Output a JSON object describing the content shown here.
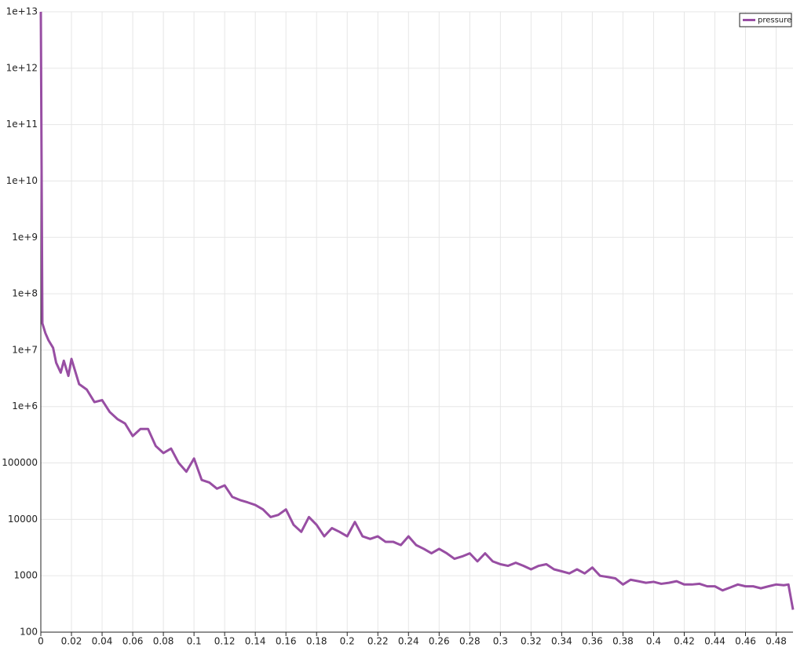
{
  "chart_data": {
    "type": "line",
    "log_y": true,
    "grid": true,
    "legend": "top-right",
    "xlim": [
      0,
      0.491
    ],
    "ylim": [
      100,
      10000000000000.0
    ],
    "xticks": [
      0,
      0.02,
      0.04,
      0.06,
      0.08,
      0.1,
      0.12,
      0.14,
      0.16,
      0.18,
      0.2,
      0.22,
      0.24,
      0.26,
      0.28,
      0.3,
      0.32,
      0.34,
      0.36,
      0.38,
      0.4,
      0.42,
      0.44,
      0.46,
      0.48
    ],
    "yticks": [
      {
        "value": 10000000000000.0,
        "label": "1e+13"
      },
      {
        "value": 1000000000000.0,
        "label": "1e+12"
      },
      {
        "value": 100000000000.0,
        "label": "1e+11"
      },
      {
        "value": 10000000000.0,
        "label": "1e+10"
      },
      {
        "value": 1000000000.0,
        "label": "1e+9"
      },
      {
        "value": 100000000.0,
        "label": "1e+8"
      },
      {
        "value": 10000000.0,
        "label": "1e+7"
      },
      {
        "value": 1000000.0,
        "label": "1e+6"
      },
      100000,
      10000,
      1000,
      100
    ],
    "x": [
      0,
      0.001,
      0.003,
      0.005,
      0.008,
      0.01,
      0.013,
      0.015,
      0.018,
      0.02,
      0.025,
      0.03,
      0.035,
      0.04,
      0.045,
      0.05,
      0.055,
      0.06,
      0.065,
      0.07,
      0.075,
      0.08,
      0.085,
      0.09,
      0.095,
      0.1,
      0.105,
      0.11,
      0.115,
      0.12,
      0.125,
      0.13,
      0.135,
      0.14,
      0.145,
      0.15,
      0.155,
      0.16,
      0.165,
      0.17,
      0.175,
      0.18,
      0.185,
      0.19,
      0.195,
      0.2,
      0.205,
      0.21,
      0.215,
      0.22,
      0.225,
      0.23,
      0.235,
      0.24,
      0.245,
      0.25,
      0.255,
      0.26,
      0.265,
      0.27,
      0.275,
      0.28,
      0.285,
      0.29,
      0.295,
      0.3,
      0.305,
      0.31,
      0.315,
      0.32,
      0.325,
      0.33,
      0.335,
      0.34,
      0.345,
      0.35,
      0.355,
      0.36,
      0.365,
      0.37,
      0.375,
      0.38,
      0.385,
      0.39,
      0.395,
      0.4,
      0.405,
      0.41,
      0.415,
      0.42,
      0.425,
      0.43,
      0.435,
      0.44,
      0.445,
      0.45,
      0.455,
      0.46,
      0.465,
      0.47,
      0.475,
      0.48,
      0.485,
      0.488,
      0.491
    ],
    "series": [
      {
        "name": "pressure",
        "color": "#984ea3",
        "values": [
          10000000000000.0,
          30000000.0,
          20000000.0,
          15000000.0,
          11000000.0,
          6000000.0,
          4000000.0,
          6500000.0,
          3500000.0,
          7000000.0,
          2500000.0,
          2000000.0,
          1200000.0,
          1300000.0,
          800000.0,
          600000.0,
          500000.0,
          300000.0,
          400000.0,
          400000.0,
          200000.0,
          150000.0,
          180000.0,
          100000.0,
          70000.0,
          120000.0,
          50000.0,
          45000.0,
          35000.0,
          40000.0,
          25000.0,
          22000.0,
          20000.0,
          18000.0,
          15000.0,
          11000.0,
          12000.0,
          15000.0,
          8000,
          6000,
          11000,
          8000,
          5000,
          7000,
          6000,
          5000,
          9000,
          5000,
          4500,
          5000,
          4000,
          4000,
          3500,
          5000,
          3500,
          3000,
          2500,
          3000,
          2500,
          2000,
          2200,
          2500,
          1800,
          2500,
          1800,
          1600,
          1500,
          1700,
          1500,
          1300,
          1500,
          1600,
          1300,
          1200,
          1100,
          1300,
          1100,
          1400,
          1000,
          950,
          900,
          700,
          850,
          800,
          750,
          780,
          720,
          750,
          800,
          700,
          700,
          720,
          650,
          650,
          550,
          620,
          700,
          650,
          650,
          600,
          650,
          700,
          680,
          700,
          250
        ]
      }
    ]
  }
}
